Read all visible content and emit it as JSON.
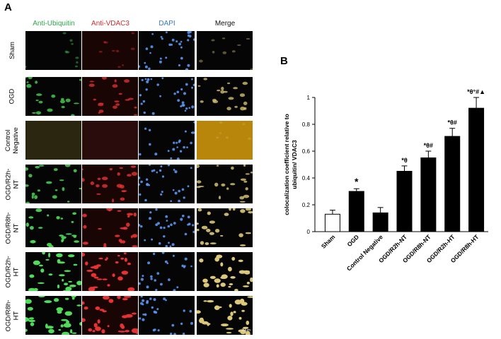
{
  "figure": {
    "panel_a_letter": "A",
    "panel_b_letter": "B",
    "channels": [
      {
        "label": "Anti-Ubiquitin",
        "color": "#2ea84a"
      },
      {
        "label": "Anti-VDAC3",
        "color": "#d22e2e"
      },
      {
        "label": "DAPI",
        "color": "#3a78c8"
      },
      {
        "label": "Merge",
        "color": "#111111"
      }
    ],
    "rows": [
      {
        "label": "Sham",
        "intensity": 0.15
      },
      {
        "label": "OGD",
        "intensity": 0.5
      },
      {
        "label": "Control\nNegative",
        "intensity": 0.0
      },
      {
        "label": "OGD/R2h-\nNT",
        "intensity": 0.55
      },
      {
        "label": "OGD/R8h-\nNT",
        "intensity": 0.65
      },
      {
        "label": "OGD/R2h-\nHT",
        "intensity": 0.8
      },
      {
        "label": "OGD/R8h-\nHT",
        "intensity": 0.95
      }
    ],
    "scale_bar_label": "20μm"
  },
  "chart_data": {
    "type": "bar",
    "title": "",
    "xlabel": "",
    "ylabel": "colocalization coefficient relative to ubiquitin/ VDAC3",
    "ylim": [
      0,
      1
    ],
    "yticks": [
      "0",
      "0.2",
      "0.4",
      "0.6",
      "0.8",
      "1"
    ],
    "categories": [
      "Sham",
      "OGD",
      "Control Negative",
      "OGD/R2h-NT",
      "OGD/R8h-NT",
      "OGD/R2h-HT",
      "OGD/R8h-HT"
    ],
    "values": [
      0.13,
      0.3,
      0.14,
      0.45,
      0.55,
      0.71,
      0.92
    ],
    "errors": [
      0.03,
      0.02,
      0.04,
      0.04,
      0.05,
      0.06,
      0.08
    ],
    "fills": [
      "#ffffff",
      "#000000",
      "#000000",
      "#000000",
      "#000000",
      "#000000",
      "#000000"
    ],
    "annotations": [
      "",
      "*",
      "",
      "*θ",
      "*θ#",
      "*θ#",
      "*θ°#▲"
    ]
  }
}
